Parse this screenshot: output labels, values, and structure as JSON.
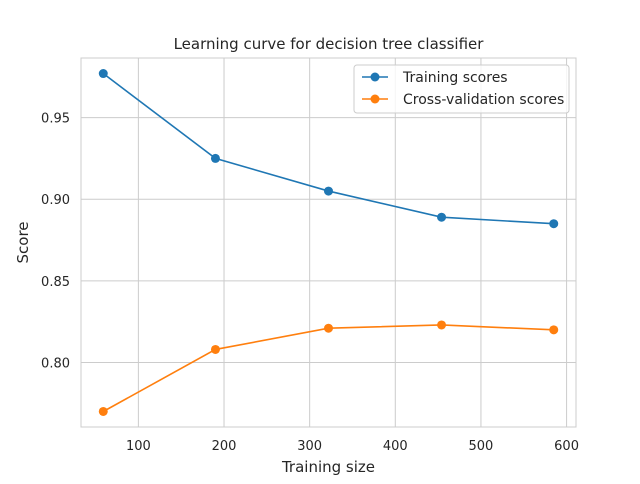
{
  "chart_data": {
    "type": "line",
    "title": "Learning curve for decision tree classifier",
    "xlabel": "Training size",
    "ylabel": "Score",
    "x": [
      59,
      190,
      322,
      454,
      585
    ],
    "series": [
      {
        "name": "Training scores",
        "color": "#1f77b4",
        "values": [
          0.977,
          0.925,
          0.905,
          0.889,
          0.885
        ]
      },
      {
        "name": "Cross-validation scores",
        "color": "#ff7f0e",
        "values": [
          0.77,
          0.808,
          0.821,
          0.823,
          0.82
        ]
      }
    ],
    "xlim": [
      33,
      611
    ],
    "ylim": [
      0.7605,
      0.9865
    ],
    "xticks": [
      100,
      200,
      300,
      400,
      500,
      600
    ],
    "xtick_labels": [
      "100",
      "200",
      "300",
      "400",
      "500",
      "600"
    ],
    "yticks": [
      0.8,
      0.85,
      0.9,
      0.95
    ],
    "ytick_labels": [
      "0.80",
      "0.85",
      "0.90",
      "0.95"
    ],
    "grid": true,
    "legend_position": "top-right",
    "marker": "circle"
  }
}
